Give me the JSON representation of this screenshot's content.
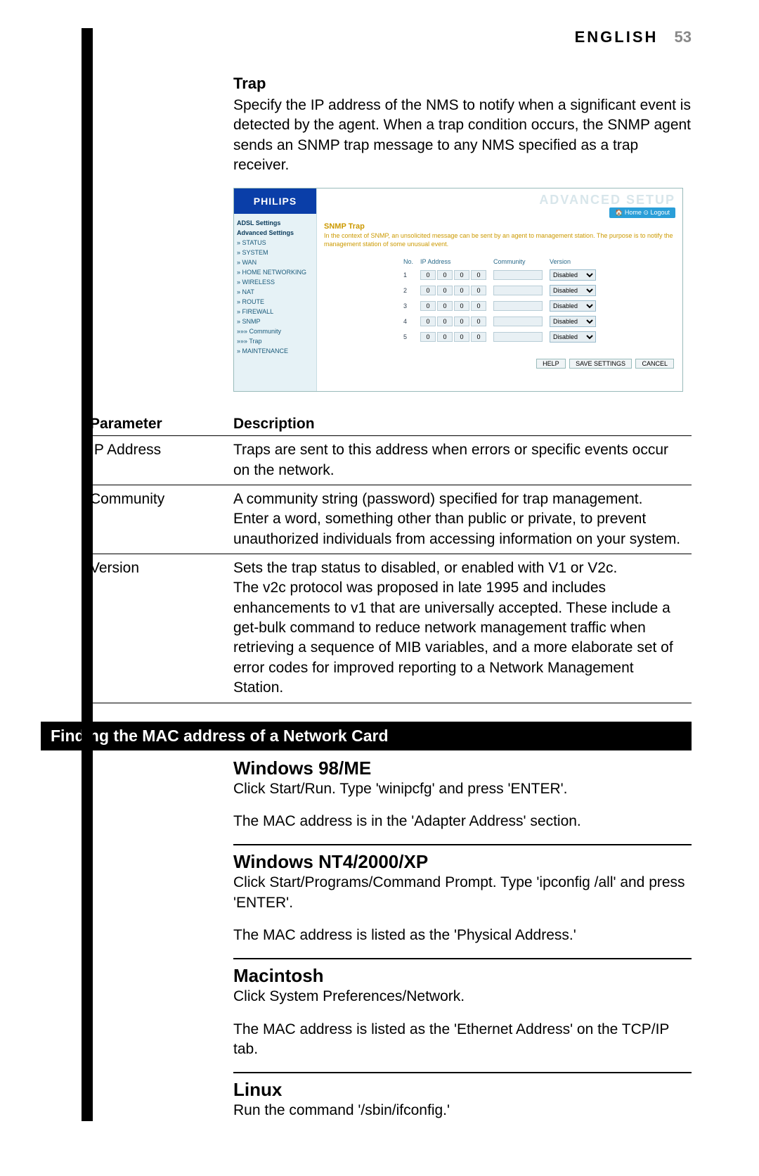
{
  "header": {
    "lang": "ENGLISH",
    "page": "53"
  },
  "trap": {
    "heading": "Trap",
    "body": "Specify the IP address of the NMS to notify when a significant event is detected by the agent. When a trap condition occurs, the SNMP agent sends an SNMP trap message to any NMS specified as a trap receiver."
  },
  "router": {
    "brand": "PHILIPS",
    "nav": {
      "group1": "ADSL Settings",
      "group2": "Advanced Settings",
      "items": [
        "» STATUS",
        "» SYSTEM",
        "» WAN",
        "» HOME NETWORKING",
        "» WIRELESS",
        "» NAT",
        "» ROUTE",
        "» FIREWALL",
        "» SNMP",
        "»»» Community",
        "»»» Trap",
        "» MAINTENANCE"
      ]
    },
    "title": "ADVANCED SETUP",
    "toplinks": "🏠 Home  ⊙ Logout",
    "subhead": "SNMP Trap",
    "desc": "In the context of SNMP, an unsolicited message can be sent by an agent to management station. The purpose is to notify the management station of some unusual event.",
    "table": {
      "headers": {
        "no": "No.",
        "ip": "IP Address",
        "community": "Community",
        "version": "Version"
      },
      "rows": [
        {
          "no": "1",
          "ip": [
            "0",
            "0",
            "0",
            "0"
          ],
          "community": "",
          "version": "Disabled"
        },
        {
          "no": "2",
          "ip": [
            "0",
            "0",
            "0",
            "0"
          ],
          "community": "",
          "version": "Disabled"
        },
        {
          "no": "3",
          "ip": [
            "0",
            "0",
            "0",
            "0"
          ],
          "community": "",
          "version": "Disabled"
        },
        {
          "no": "4",
          "ip": [
            "0",
            "0",
            "0",
            "0"
          ],
          "community": "",
          "version": "Disabled"
        },
        {
          "no": "5",
          "ip": [
            "0",
            "0",
            "0",
            "0"
          ],
          "community": "",
          "version": "Disabled"
        }
      ]
    },
    "buttons": {
      "help": "HELP",
      "save": "SAVE SETTINGS",
      "cancel": "CANCEL"
    }
  },
  "param_table": {
    "col_param": "Parameter",
    "col_desc": "Description",
    "rows": [
      {
        "p": "IP Address",
        "d": "Traps are sent to this address when errors or specific events occur on the network."
      },
      {
        "p": "Community",
        "d": "A community string (password) specified for trap management.\nEnter a word, something other than public or private, to prevent unauthorized individuals from accessing information on your system."
      },
      {
        "p": "Version",
        "d": "Sets the trap status to disabled, or enabled with V1 or V2c.\nThe v2c protocol was proposed in late 1995 and includes enhancements to v1 that are universally accepted. These include a get-bulk command to reduce network management traffic when retrieving a sequence of MIB variables, and a more elaborate set of error codes for improved reporting to a Network Management Station."
      }
    ]
  },
  "mac_section": {
    "bar": "Finding the MAC address of a Network Card",
    "os": [
      {
        "h": "Windows 98/ME",
        "l1": "Click Start/Run. Type 'winipcfg' and press 'ENTER'.",
        "l2": "The MAC address is in the 'Adapter Address' section."
      },
      {
        "h": "Windows NT4/2000/XP",
        "l1": "Click Start/Programs/Command Prompt. Type 'ipconfig /all' and press 'ENTER'.",
        "l2": "The MAC address is listed as the 'Physical Address.'"
      },
      {
        "h": "Macintosh",
        "l1": "Click System Preferences/Network.",
        "l2": "The MAC address is listed as the 'Ethernet Address' on the TCP/IP tab."
      },
      {
        "h": "Linux",
        "l1": "Run the command '/sbin/ifconfig.'",
        "l2": ""
      }
    ]
  }
}
